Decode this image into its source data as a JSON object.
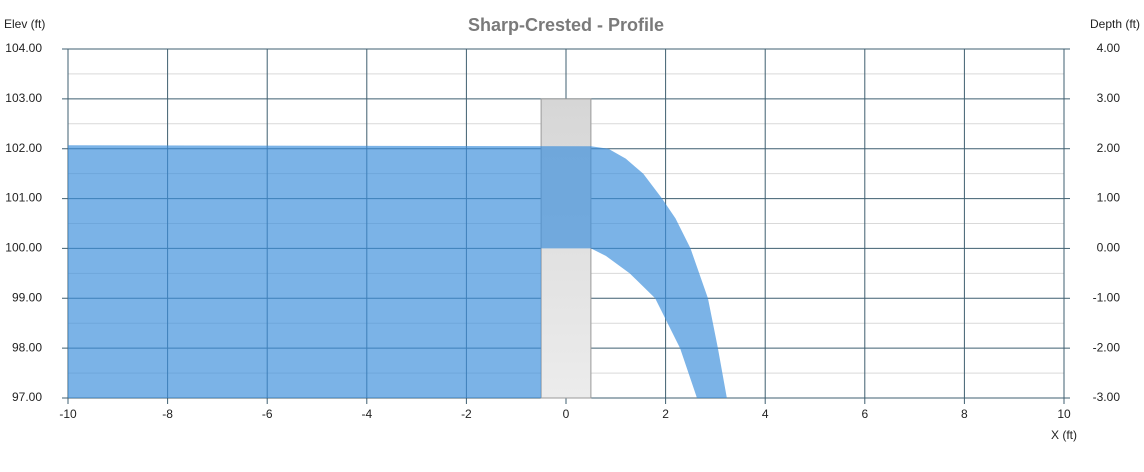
{
  "chart_data": {
    "type": "profile",
    "title": "Sharp-Crested - Profile",
    "ylabel": "Elev (ft)",
    "y2label": "Depth (ft)",
    "xlabel": "X (ft)",
    "xlim": [
      -10,
      10
    ],
    "xticks": [
      -10,
      -8,
      -6,
      -4,
      -2,
      0,
      2,
      4,
      6,
      8,
      10
    ],
    "ylim": [
      97,
      104
    ],
    "yticks": [
      {
        "value": 97,
        "label": "97.00"
      },
      {
        "value": 98,
        "label": "98.00"
      },
      {
        "value": 99,
        "label": "99.00"
      },
      {
        "value": 100,
        "label": "100.00"
      },
      {
        "value": 101,
        "label": "101.00"
      },
      {
        "value": 102,
        "label": "102.00"
      },
      {
        "value": 103,
        "label": "103.00"
      },
      {
        "value": 104,
        "label": "104.00"
      }
    ],
    "y_minor_ticks": [
      97.5,
      98.5,
      99.5,
      100.5,
      101.5,
      102.5,
      103.5
    ],
    "y2lim": [
      -3,
      4
    ],
    "y2ticks": [
      {
        "value": -3,
        "label": "-3.00"
      },
      {
        "value": -2,
        "label": "-2.00"
      },
      {
        "value": -1,
        "label": "-1.00"
      },
      {
        "value": 0,
        "label": "0.00"
      },
      {
        "value": 1,
        "label": "1.00"
      },
      {
        "value": 2,
        "label": "2.00"
      },
      {
        "value": 3,
        "label": "3.00"
      },
      {
        "value": 4,
        "label": "4.00"
      }
    ],
    "grid": true,
    "grid_color": "#3f5f70",
    "minor_grid_color": "#d9d9d9",
    "weir": {
      "x": [
        -0.5,
        0.5
      ],
      "values": [
        97,
        103
      ],
      "color": "#d6d6d6"
    },
    "water_color": "#3d8fdc",
    "series": [
      {
        "x": [
          -10,
          0.5,
          0.85,
          1.2,
          1.55,
          1.93,
          2.2,
          2.5,
          2.85,
          3.05,
          3.23
        ],
        "values": [
          102.07,
          102.05,
          102.0,
          101.8,
          101.5,
          101.0,
          100.6,
          100.0,
          99.0,
          98.0,
          97.0
        ]
      },
      {
        "x": [
          -10,
          -0.5,
          -0.5,
          0.5,
          0.8,
          1.28,
          1.79,
          2.29,
          2.63
        ],
        "values": [
          97,
          97,
          100,
          100,
          99.85,
          99.5,
          99.0,
          98.0,
          97.0
        ]
      }
    ]
  }
}
